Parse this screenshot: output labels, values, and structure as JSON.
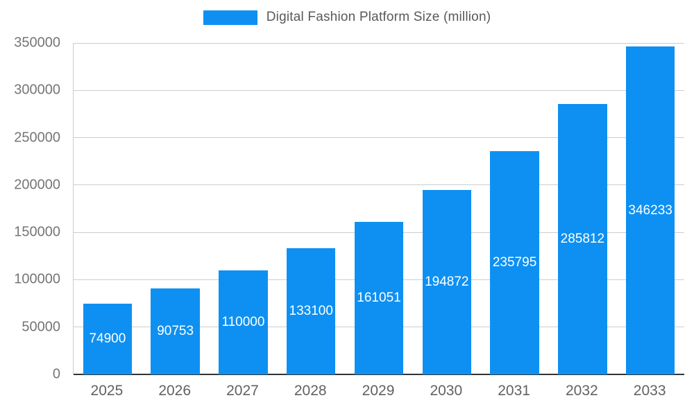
{
  "chart_data": {
    "type": "bar",
    "title": "Digital Fashion Platform Size (million)",
    "legend_position": "top",
    "categories": [
      "2025",
      "2026",
      "2027",
      "2028",
      "2029",
      "2030",
      "2031",
      "2032",
      "2033"
    ],
    "values": [
      74900,
      90753,
      110000,
      133100,
      161051,
      194872,
      235795,
      285812,
      346233
    ],
    "value_labels": [
      "74900",
      "90753",
      "110000",
      "133100",
      "161051",
      "194872",
      "235795",
      "285812",
      "346233"
    ],
    "xlabel": "",
    "ylabel": "",
    "ylim": [
      0,
      350000
    ],
    "yticks": [
      0,
      50000,
      100000,
      150000,
      200000,
      250000,
      300000,
      350000
    ],
    "grid": true,
    "colors": {
      "bar": "#0E90F2",
      "bar_label": "#ffffff",
      "grid_line": "#cccccc",
      "baseline": "#333333",
      "axis_text": "#757575",
      "title_text": "#595959"
    }
  }
}
